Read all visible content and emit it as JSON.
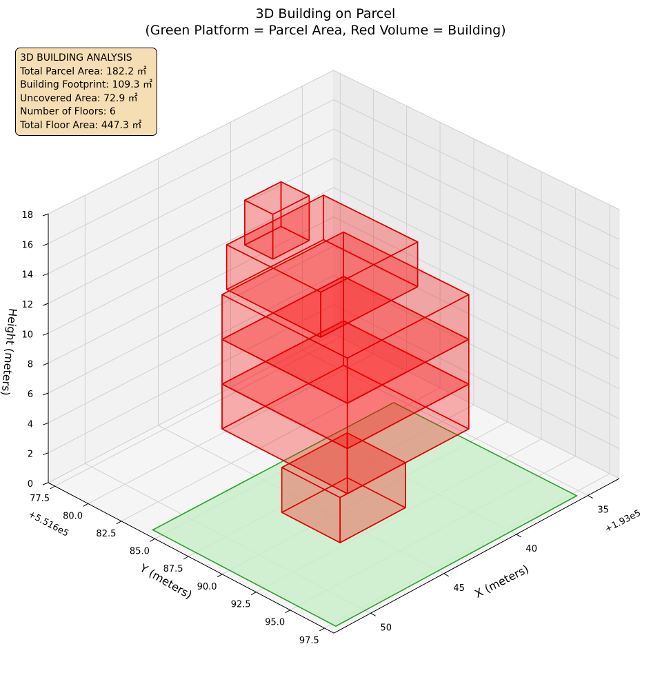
{
  "chart_data": {
    "type": "3d-box",
    "title": "3D Building on Parcel",
    "subtitle": "(Green Platform = Parcel Area, Red Volume = Building)",
    "xlabel": "X (meters)",
    "ylabel": "Y (meters)",
    "zlabel": "Height (meters)",
    "x_offset_label": "+1.93e5",
    "y_offset_label": "+5.516e5",
    "x_ticks": [
      "35",
      "40",
      "45",
      "50"
    ],
    "y_ticks": [
      "77.5",
      "80.0",
      "82.5",
      "85.0",
      "87.5",
      "90.0",
      "92.5",
      "95.0",
      "97.5"
    ],
    "z_ticks": [
      "0",
      "2",
      "4",
      "6",
      "8",
      "10",
      "12",
      "14",
      "16",
      "18"
    ],
    "grid": true,
    "colors": {
      "parcel_fill": "#c8eec8",
      "parcel_edge": "#2ca02c",
      "building_fill": "#ff0000",
      "building_edge": "#dd0000",
      "info_box_bg": "#f5deb3"
    },
    "parcel": {
      "x": [
        35.4,
        52.0
      ],
      "y": [
        84.3,
        97.8
      ],
      "z": 0
    },
    "floors": [
      {
        "floor": 1,
        "x": [
          42.0,
          46.5
        ],
        "y": [
          87.9,
          92.2
        ],
        "z": [
          0,
          3
        ]
      },
      {
        "floor": 2,
        "x": [
          37.6,
          46.0
        ],
        "y": [
          82.9,
          92.2
        ],
        "z": [
          3,
          6
        ]
      },
      {
        "floor": 3,
        "x": [
          37.6,
          46.0
        ],
        "y": [
          82.9,
          92.2
        ],
        "z": [
          6,
          9
        ]
      },
      {
        "floor": 4,
        "x": [
          37.6,
          46.0
        ],
        "y": [
          82.9,
          92.2
        ],
        "z": [
          9,
          12
        ]
      },
      {
        "floor": 5,
        "x": [
          38.8,
          45.5
        ],
        "y": [
          82.7,
          89.7
        ],
        "z": [
          12,
          15
        ]
      },
      {
        "floor": 6,
        "x": [
          42.4,
          44.9
        ],
        "y": [
          83.4,
          85.5
        ],
        "z": [
          15,
          18
        ]
      }
    ],
    "info": {
      "heading": "3D BUILDING ANALYSIS",
      "lines": [
        "Total Parcel Area: 182.2 ㎡",
        "Building Footprint: 109.3 ㎡",
        "Uncovered Area: 72.9 ㎡",
        "Number of Floors: 6",
        "Total Floor Area: 447.3 ㎡"
      ]
    }
  }
}
